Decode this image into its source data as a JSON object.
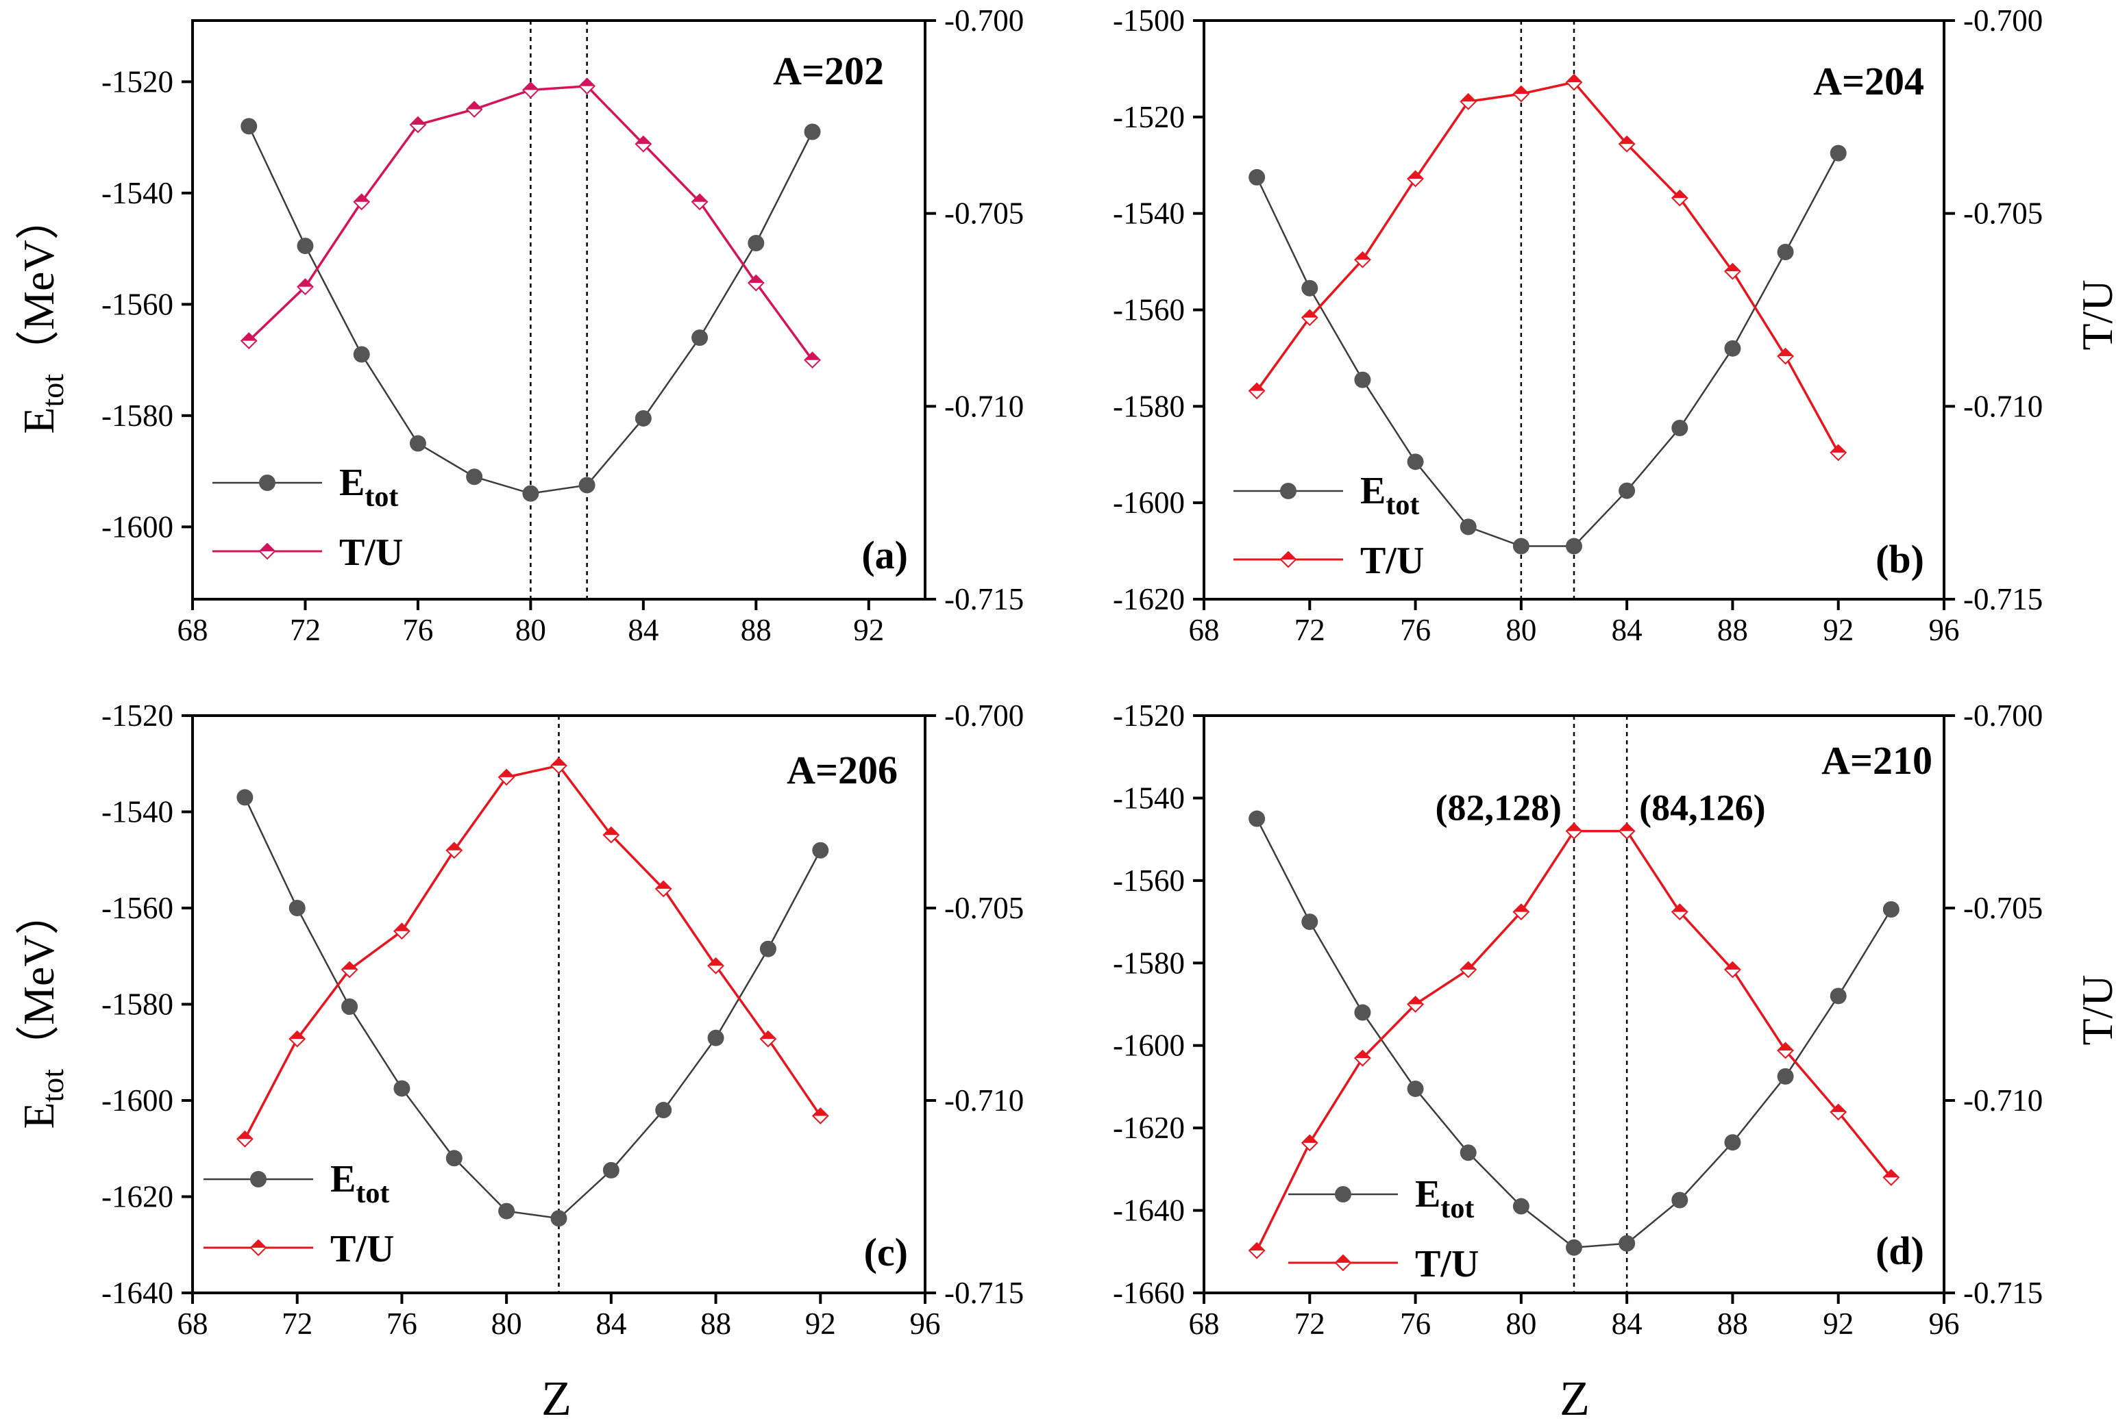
{
  "xlabel": "Z",
  "ylabel_main": "E",
  "ylabel_sub": "tot",
  "ylabel_unit": "（MeV）",
  "ylabel_right": "T/U",
  "colors": {
    "etot": "#4a4a4a",
    "tu_a": "#d4145a",
    "tu": "#e8141e",
    "tu_fill": "#e8141e"
  },
  "legend": {
    "etot_main": "E",
    "etot_sub": "tot",
    "tu": "T/U"
  },
  "chart_data": [
    {
      "type": "line",
      "title": "A=202",
      "panel_label": "(a)",
      "xlim": [
        68,
        94
      ],
      "xticks": [
        68,
        72,
        76,
        80,
        84,
        88,
        92
      ],
      "xtick_labels": [
        "68",
        "72",
        "76",
        "80",
        "84",
        "88",
        "92"
      ],
      "ylim_left": [
        -1613,
        -1509
      ],
      "yticks_left": [
        -1520,
        -1540,
        -1560,
        -1580,
        -1600
      ],
      "ytick_labels_left": [
        "-1520",
        "-1540",
        "-1560",
        "-1580",
        "-1600"
      ],
      "ylim_right": [
        -0.715,
        -0.7
      ],
      "yticks_right": [
        -0.7,
        -0.705,
        -0.71,
        -0.715
      ],
      "ytick_labels_right": [
        "-0.700",
        "-0.705",
        "-0.710",
        "-0.715"
      ],
      "vlines": [
        80,
        82
      ],
      "series": [
        {
          "name": "Etot",
          "axis": "left",
          "x": [
            70,
            72,
            74,
            76,
            78,
            80,
            82,
            84,
            86,
            88,
            90
          ],
          "values": [
            -1528,
            -1549.5,
            -1569,
            -1585,
            -1591,
            -1594,
            -1592.5,
            -1580.5,
            -1566,
            -1549,
            -1529
          ]
        },
        {
          "name": "T/U",
          "axis": "right",
          "x": [
            70,
            72,
            74,
            76,
            78,
            80,
            82,
            84,
            86,
            88,
            90
          ],
          "values": [
            -0.7083,
            -0.7069,
            -0.7047,
            -0.7027,
            -0.7023,
            -0.7018,
            -0.7017,
            -0.7032,
            -0.7047,
            -0.7068,
            -0.7088
          ]
        }
      ]
    },
    {
      "type": "line",
      "title": "A=204",
      "panel_label": "(b)",
      "xlim": [
        68,
        96
      ],
      "xticks": [
        68,
        72,
        76,
        80,
        84,
        88,
        92,
        96
      ],
      "xtick_labels": [
        "68",
        "72",
        "76",
        "80",
        "84",
        "88",
        "92",
        "96"
      ],
      "ylim_left": [
        -1620,
        -1500
      ],
      "yticks_left": [
        -1500,
        -1520,
        -1540,
        -1560,
        -1580,
        -1600,
        -1620
      ],
      "ytick_labels_left": [
        "-1500",
        "-1520",
        "-1540",
        "-1560",
        "-1580",
        "-1600",
        "-1620"
      ],
      "ylim_right": [
        -0.715,
        -0.7
      ],
      "yticks_right": [
        -0.7,
        -0.705,
        -0.71,
        -0.715
      ],
      "ytick_labels_right": [
        "-0.700",
        "-0.705",
        "-0.710",
        "-0.715"
      ],
      "vlines": [
        80,
        82
      ],
      "series": [
        {
          "name": "Etot",
          "axis": "left",
          "x": [
            70,
            72,
            74,
            76,
            78,
            80,
            82,
            84,
            86,
            88,
            90,
            92
          ],
          "values": [
            -1532.5,
            -1555.5,
            -1574.5,
            -1591.5,
            -1605,
            -1609,
            -1609,
            -1597.5,
            -1584.5,
            -1568,
            -1548,
            -1527.5
          ]
        },
        {
          "name": "T/U",
          "axis": "right",
          "x": [
            70,
            72,
            74,
            76,
            78,
            80,
            82,
            84,
            86,
            88,
            90,
            92
          ],
          "values": [
            -0.7096,
            -0.7077,
            -0.7062,
            -0.7041,
            -0.7021,
            -0.7019,
            -0.7016,
            -0.7032,
            -0.7046,
            -0.7065,
            -0.7087,
            -0.7112
          ]
        }
      ]
    },
    {
      "type": "line",
      "title": "A=206",
      "panel_label": "(c)",
      "xlim": [
        68,
        96
      ],
      "xticks": [
        68,
        72,
        76,
        80,
        84,
        88,
        92,
        96
      ],
      "xtick_labels": [
        "68",
        "72",
        "76",
        "80",
        "84",
        "88",
        "92",
        "96"
      ],
      "ylim_left": [
        -1640,
        -1520
      ],
      "yticks_left": [
        -1520,
        -1540,
        -1560,
        -1580,
        -1600,
        -1620,
        -1640
      ],
      "ytick_labels_left": [
        "-1520",
        "-1540",
        "-1560",
        "-1580",
        "-1600",
        "-1620",
        "-1640"
      ],
      "ylim_right": [
        -0.715,
        -0.7
      ],
      "yticks_right": [
        -0.7,
        -0.705,
        -0.71,
        -0.715
      ],
      "ytick_labels_right": [
        "-0.700",
        "-0.705",
        "-0.710",
        "-0.715"
      ],
      "vlines": [
        82
      ],
      "series": [
        {
          "name": "Etot",
          "axis": "left",
          "x": [
            70,
            72,
            74,
            76,
            78,
            80,
            82,
            84,
            86,
            88,
            90,
            92
          ],
          "values": [
            -1537,
            -1560,
            -1580.5,
            -1597.5,
            -1612,
            -1623,
            -1624.5,
            -1614.5,
            -1602,
            -1587,
            -1568.5,
            -1548
          ]
        },
        {
          "name": "T/U",
          "axis": "right",
          "x": [
            70,
            72,
            74,
            76,
            78,
            80,
            82,
            84,
            86,
            88,
            90,
            92
          ],
          "values": [
            -0.711,
            -0.7084,
            -0.7066,
            -0.7056,
            -0.7035,
            -0.7016,
            -0.7013,
            -0.7031,
            -0.7045,
            -0.7065,
            -0.7084,
            -0.7104
          ]
        }
      ]
    },
    {
      "type": "line",
      "title": "A=210",
      "panel_label": "(d)",
      "xlim": [
        68,
        96
      ],
      "xticks": [
        68,
        72,
        76,
        80,
        84,
        88,
        92,
        96
      ],
      "xtick_labels": [
        "68",
        "72",
        "76",
        "80",
        "84",
        "88",
        "92",
        "96"
      ],
      "ylim_left": [
        -1660,
        -1520
      ],
      "yticks_left": [
        -1520,
        -1540,
        -1560,
        -1580,
        -1600,
        -1620,
        -1640,
        -1660
      ],
      "ytick_labels_left": [
        "-1520",
        "-1540",
        "-1560",
        "-1580",
        "-1600",
        "-1620",
        "-1640",
        "-1660"
      ],
      "ylim_right": [
        -0.715,
        -0.7
      ],
      "yticks_right": [
        -0.7,
        -0.705,
        -0.71,
        -0.715
      ],
      "ytick_labels_right": [
        "-0.700",
        "-0.705",
        "-0.710",
        "-0.715"
      ],
      "vlines": [
        82,
        84
      ],
      "annotations": [
        {
          "text": "(82,128)",
          "x": 82,
          "side": "left"
        },
        {
          "text": "(84,126)",
          "x": 84,
          "side": "right"
        }
      ],
      "series": [
        {
          "name": "Etot",
          "axis": "left",
          "x": [
            70,
            72,
            74,
            76,
            78,
            80,
            82,
            84,
            86,
            88,
            90,
            92,
            94
          ],
          "values": [
            -1545,
            -1570,
            -1592,
            -1610.5,
            -1626,
            -1639,
            -1649,
            -1648,
            -1637.5,
            -1623.5,
            -1607.5,
            -1588,
            -1567
          ]
        },
        {
          "name": "T/U",
          "axis": "right",
          "x": [
            70,
            72,
            74,
            76,
            78,
            80,
            82,
            84,
            86,
            88,
            90,
            92,
            94
          ],
          "values": [
            -0.7139,
            -0.7111,
            -0.7089,
            -0.7075,
            -0.7066,
            -0.7051,
            -0.703,
            -0.703,
            -0.7051,
            -0.7066,
            -0.7087,
            -0.7103,
            -0.712
          ]
        }
      ]
    }
  ]
}
